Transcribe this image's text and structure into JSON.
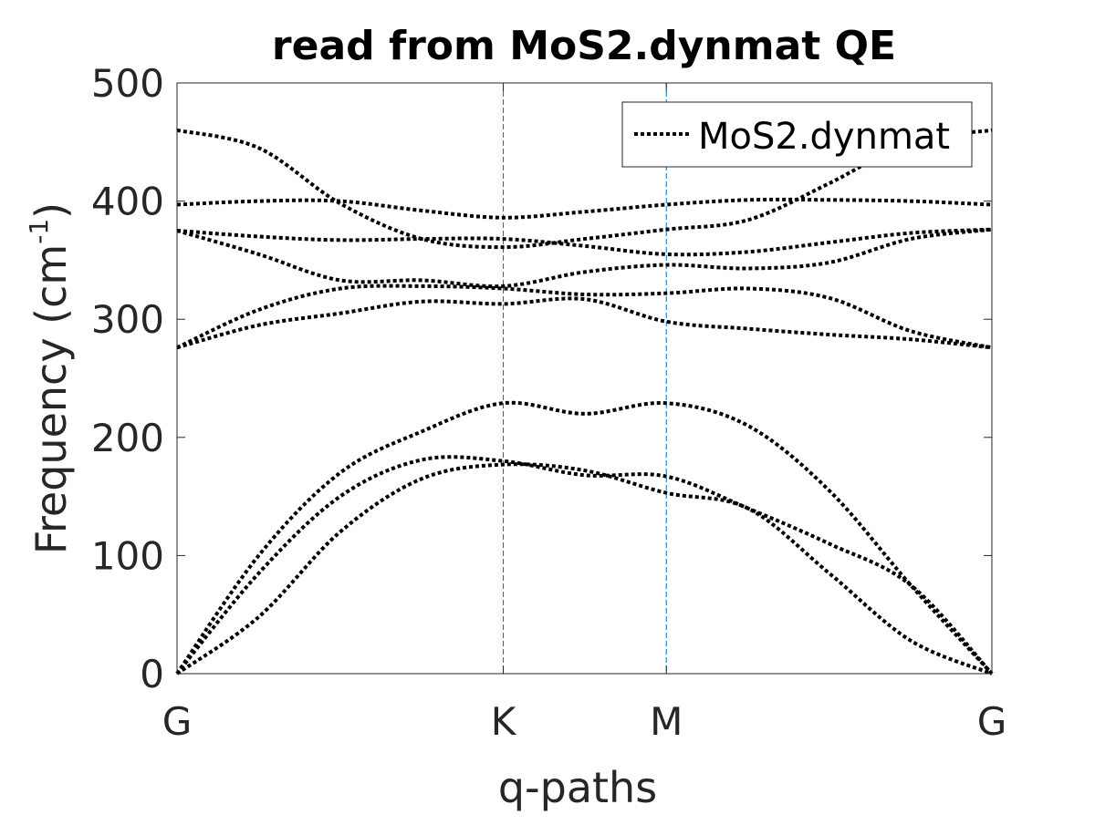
{
  "chart_data": {
    "type": "line",
    "title": "read from MoS2.dynmat QE",
    "xlabel": "q-paths",
    "ylabel": "Frequency (cm",
    "ylabel_sup": "-1",
    "ylabel_close": ")",
    "xlim": [
      0,
      3.732
    ],
    "ylim": [
      0,
      500
    ],
    "grid": false,
    "legend_position": "top-right",
    "legend": [
      "MoS2.dynmat"
    ],
    "xticks": [
      {
        "value": 0,
        "label": "G"
      },
      {
        "value": 1.494,
        "label": "K"
      },
      {
        "value": 2.241,
        "label": "M"
      },
      {
        "value": 3.732,
        "label": "G"
      }
    ],
    "yticks": [
      0,
      100,
      200,
      300,
      400,
      500
    ],
    "vlines": [
      1.494,
      2.241
    ],
    "colors": {
      "series": "#000000",
      "vline": "#0072BD",
      "axis": "#262626"
    },
    "series_name": "MoS2.dynmat",
    "x": [
      0,
      0.374,
      0.747,
      1.121,
      1.494,
      1.867,
      2.241,
      2.614,
      2.987,
      3.36,
      3.732
    ],
    "branches": [
      {
        "values": [
          0,
          100,
          170,
          205,
          229,
          220,
          229,
          210,
          155,
          75,
          0
        ]
      },
      {
        "values": [
          0,
          85,
          150,
          181,
          180,
          168,
          167,
          140,
          110,
          75,
          0
        ]
      },
      {
        "values": [
          0,
          48,
          120,
          165,
          177,
          172,
          153,
          140,
          85,
          28,
          0
        ]
      },
      {
        "values": [
          276,
          295,
          305,
          315,
          313,
          317,
          298,
          292,
          287,
          283,
          276
        ]
      },
      {
        "values": [
          276,
          308,
          326,
          328,
          326,
          321,
          322,
          326,
          318,
          290,
          276
        ]
      },
      {
        "values": [
          375,
          355,
          333,
          333,
          328,
          340,
          346,
          343,
          348,
          368,
          376
        ]
      },
      {
        "values": [
          375,
          370,
          367,
          368,
          368,
          362,
          355,
          357,
          365,
          373,
          376
        ]
      },
      {
        "values": [
          397,
          400,
          400,
          392,
          386,
          391,
          397,
          401,
          401,
          400,
          397
        ]
      },
      {
        "values": [
          460,
          445,
          398,
          368,
          361,
          368,
          376,
          384,
          415,
          450,
          460
        ]
      }
    ]
  }
}
